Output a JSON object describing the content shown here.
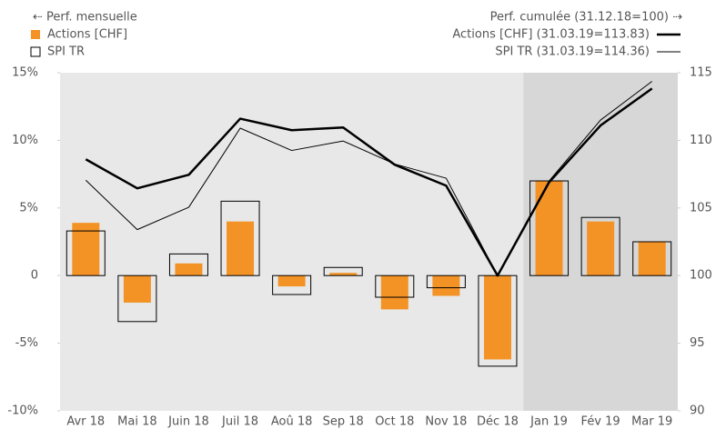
{
  "chart_data": {
    "type": "bar",
    "left_legend_title": "⇠ Perf. mensuelle",
    "right_legend_title": "Perf. cumulée (31.12.18=100) ⇢",
    "categories": [
      "Avr 18",
      "Mai 18",
      "Juin 18",
      "Juil 18",
      "Aoû 18",
      "Sep 18",
      "Oct 18",
      "Nov 18",
      "Déc 18",
      "Jan 19",
      "Fév 19",
      "Mar 19"
    ],
    "series": [
      {
        "name": "Actions [CHF]",
        "type": "bar",
        "style": "filled",
        "color": "#f39325",
        "values": [
          3.9,
          -2.0,
          0.9,
          4.0,
          -0.8,
          0.2,
          -2.5,
          -1.5,
          -6.2,
          7.0,
          4.0,
          2.5
        ]
      },
      {
        "name": "SPI TR",
        "type": "bar",
        "style": "outline",
        "color": "#000000",
        "values": [
          3.3,
          -3.4,
          1.6,
          5.5,
          -1.4,
          0.6,
          -1.6,
          -0.9,
          -6.7,
          7.0,
          4.3,
          2.5
        ]
      },
      {
        "name": "Actions [CHF] (31.03.19=113.83)",
        "type": "line",
        "axis": "y2",
        "color": "#000000",
        "line_width": 2.5,
        "values": [
          108.6,
          106.45,
          107.45,
          111.6,
          110.75,
          110.95,
          108.2,
          106.65,
          100,
          106.9,
          111.1,
          113.83
        ]
      },
      {
        "name": "SPI TR (31.03.19=114.36)",
        "type": "line",
        "axis": "y2",
        "color": "#000000",
        "line_width": 1,
        "values": [
          107.05,
          103.4,
          105.05,
          110.9,
          109.25,
          109.95,
          108.25,
          107.2,
          100,
          107.0,
          111.5,
          114.36
        ]
      }
    ],
    "ylim": [
      -10,
      15
    ],
    "yticks": [
      {
        "value": 15,
        "label": "15%"
      },
      {
        "value": 10,
        "label": "10%"
      },
      {
        "value": 5,
        "label": "5%"
      },
      0,
      {
        "value": -5,
        "label": "-5%"
      },
      {
        "value": -10,
        "label": "-10%"
      }
    ],
    "y2lim": [
      90,
      115
    ],
    "y2ticks": [
      115,
      110,
      105,
      100,
      95,
      90
    ],
    "highlight": {
      "from": 9
    }
  }
}
